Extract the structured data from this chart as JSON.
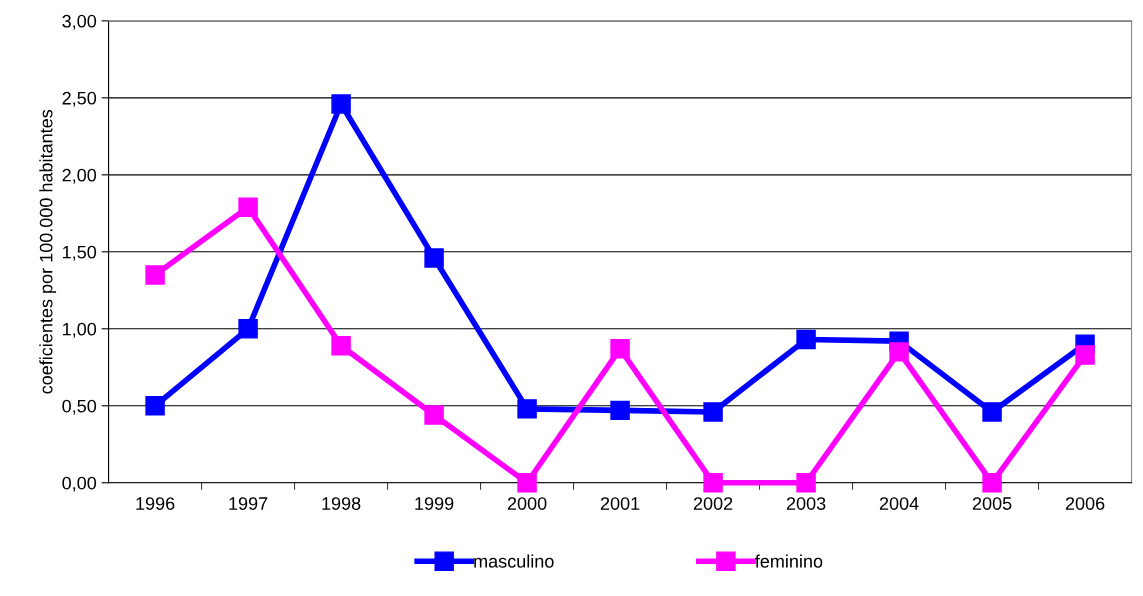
{
  "chart_data": {
    "type": "line",
    "ylabel": "coeficientes por 100.000 habitantes",
    "categories": [
      "1996",
      "1997",
      "1998",
      "1999",
      "2000",
      "2001",
      "2002",
      "2003",
      "2004",
      "2005",
      "2006"
    ],
    "series": [
      {
        "name": "masculino",
        "color": "#0000ff",
        "values": [
          0.5,
          1.0,
          2.46,
          1.46,
          0.48,
          0.47,
          0.46,
          0.93,
          0.92,
          0.46,
          0.9
        ]
      },
      {
        "name": "feminino",
        "color": "#ff00ff",
        "values": [
          1.35,
          1.79,
          0.89,
          0.44,
          0.0,
          0.87,
          0.0,
          0.0,
          0.85,
          0.0,
          0.83
        ]
      }
    ],
    "ylim": [
      0,
      3
    ],
    "yticks": [
      {
        "value": 0,
        "label": "0,00"
      },
      {
        "value": 0.5,
        "label": "0,50"
      },
      {
        "value": 1,
        "label": "1,00"
      },
      {
        "value": 1.5,
        "label": "1,50"
      },
      {
        "value": 2,
        "label": "2,00"
      },
      {
        "value": 2.5,
        "label": "2,50"
      },
      {
        "value": 3,
        "label": "3,00"
      }
    ],
    "grid": "y",
    "legend": "bottom",
    "marker": "square",
    "line_style": "solid"
  }
}
